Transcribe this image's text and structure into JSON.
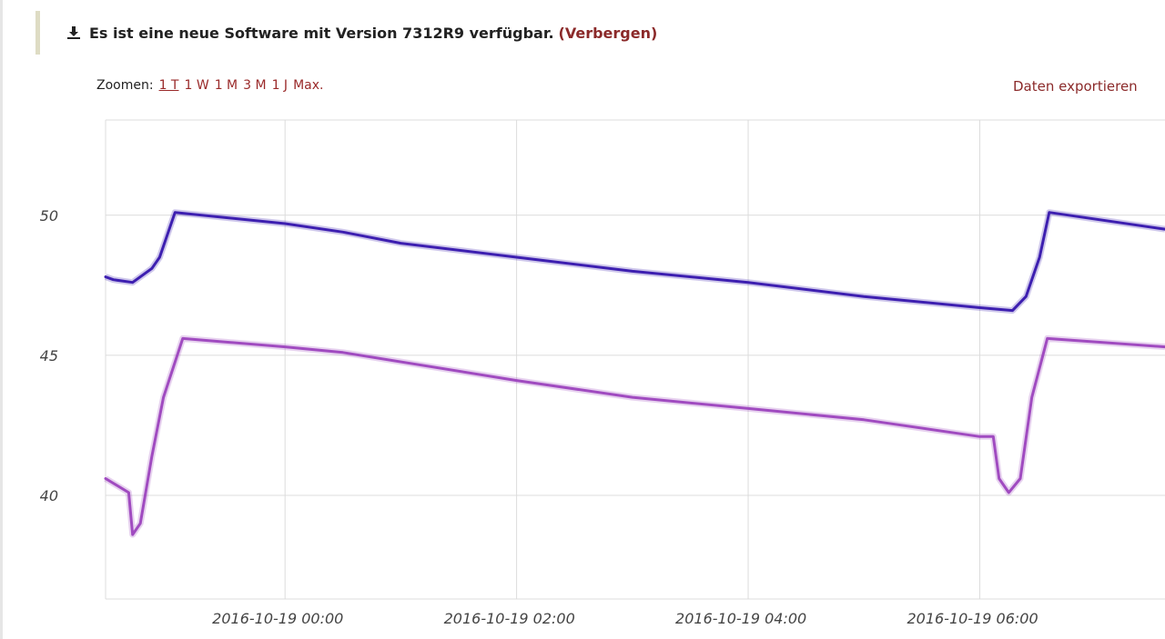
{
  "notice": {
    "icon": "download-icon",
    "text": "Es ist eine neue Software mit Version 7312R9 verfügbar.",
    "hide_label": "(Verbergen)"
  },
  "zoom": {
    "label": "Zoomen:",
    "options": [
      "1 T",
      "1 W",
      "1 M",
      "3 M",
      "1 J",
      "Max."
    ],
    "active": "1 T"
  },
  "export_label": "Daten exportieren",
  "colors": {
    "series1": "#3d1fb0",
    "series2": "#a04bc0",
    "link": "#8b2a2a",
    "grid": "#dcdcdc"
  },
  "chart_data": {
    "type": "line",
    "grid": true,
    "legend": "none",
    "ylim": [
      36.3,
      53.4
    ],
    "xlim": [
      "2016-10-18T22:27",
      "2016-10-19T07:36"
    ],
    "y_ticks": [
      50,
      45,
      40
    ],
    "x_ticks": [
      "2016-10-19 00:00",
      "2016-10-19 02:00",
      "2016-10-19 04:00",
      "2016-10-19 06:00"
    ],
    "series": [
      {
        "color": "#3d1fb0",
        "points": [
          [
            "2016-10-18T22:27",
            47.8
          ],
          [
            "2016-10-18T22:31",
            47.7
          ],
          [
            "2016-10-18T22:41",
            47.6
          ],
          [
            "2016-10-18T22:51",
            48.1
          ],
          [
            "2016-10-18T22:55",
            48.5
          ],
          [
            "2016-10-18T23:03",
            50.1
          ],
          [
            "2016-10-19T00:00",
            49.7
          ],
          [
            "2016-10-19T00:30",
            49.4
          ],
          [
            "2016-10-19T01:00",
            49.0
          ],
          [
            "2016-10-19T02:00",
            48.5
          ],
          [
            "2016-10-19T03:00",
            48.0
          ],
          [
            "2016-10-19T04:00",
            47.6
          ],
          [
            "2016-10-19T05:00",
            47.1
          ],
          [
            "2016-10-19T06:00",
            46.7
          ],
          [
            "2016-10-19T06:17",
            46.6
          ],
          [
            "2016-10-19T06:24",
            47.1
          ],
          [
            "2016-10-19T06:31",
            48.5
          ],
          [
            "2016-10-19T06:36",
            50.1
          ],
          [
            "2016-10-19T07:36",
            49.5
          ]
        ]
      },
      {
        "color": "#a04bc0",
        "points": [
          [
            "2016-10-18T22:27",
            40.6
          ],
          [
            "2016-10-18T22:39",
            40.1
          ],
          [
            "2016-10-18T22:41",
            38.6
          ],
          [
            "2016-10-18T22:45",
            39.0
          ],
          [
            "2016-10-18T22:51",
            41.4
          ],
          [
            "2016-10-18T22:57",
            43.5
          ],
          [
            "2016-10-18T23:07",
            45.6
          ],
          [
            "2016-10-19T00:00",
            45.3
          ],
          [
            "2016-10-19T00:30",
            45.1
          ],
          [
            "2016-10-19T02:00",
            44.1
          ],
          [
            "2016-10-19T03:00",
            43.5
          ],
          [
            "2016-10-19T04:00",
            43.1
          ],
          [
            "2016-10-19T05:00",
            42.7
          ],
          [
            "2016-10-19T06:00",
            42.1
          ],
          [
            "2016-10-19T06:07",
            42.1
          ],
          [
            "2016-10-19T06:10",
            40.6
          ],
          [
            "2016-10-19T06:15",
            40.1
          ],
          [
            "2016-10-19T06:21",
            40.6
          ],
          [
            "2016-10-19T06:27",
            43.5
          ],
          [
            "2016-10-19T06:35",
            45.6
          ],
          [
            "2016-10-19T07:36",
            45.3
          ]
        ]
      }
    ]
  }
}
